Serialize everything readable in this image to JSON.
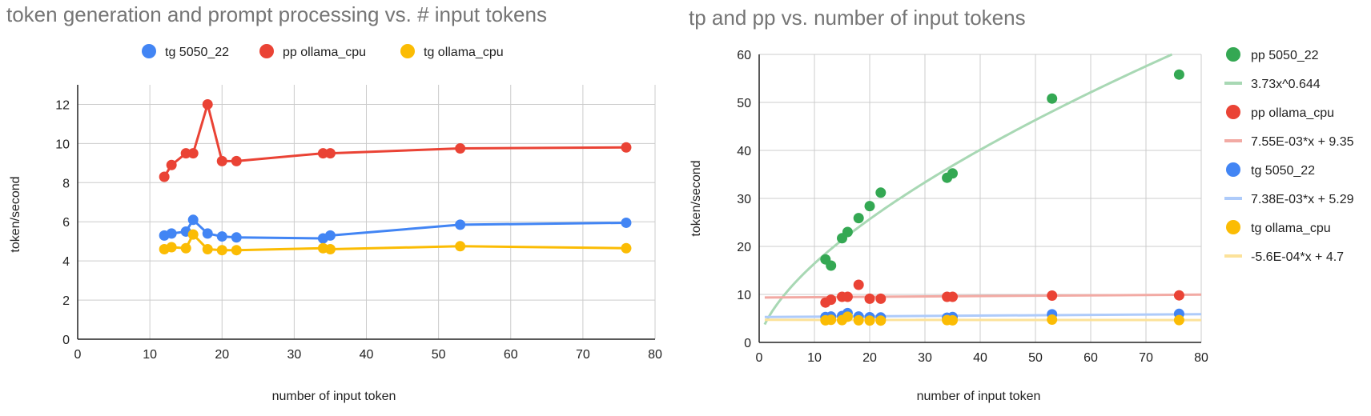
{
  "colors": {
    "blue": "#4285f4",
    "red": "#ea4335",
    "yellow": "#fbbc04",
    "green": "#34a853",
    "green_trend": "#a8d8b4",
    "red_trend": "#f2aaa4",
    "blue_trend": "#aecbfa",
    "yellow_trend": "#fce29a",
    "title": "#757575",
    "grid": "#cccccc",
    "axis": "#222222"
  },
  "chart_data": [
    {
      "type": "line",
      "title": "token generation and prompt processing vs. # input tokens",
      "xlabel": "number of input token",
      "ylabel": "token/second",
      "xlim": [
        0,
        80
      ],
      "ylim": [
        0,
        13
      ],
      "xticks": [
        0,
        10,
        20,
        30,
        40,
        50,
        60,
        70,
        80
      ],
      "yticks": [
        0,
        2,
        4,
        6,
        8,
        10,
        12
      ],
      "grid": true,
      "legend": "top",
      "x": [
        12,
        13,
        15,
        16,
        18,
        20,
        22,
        34,
        35,
        53,
        76
      ],
      "series": [
        {
          "name": "tg 5050_22",
          "color": "blue",
          "values": [
            5.3,
            5.4,
            5.5,
            6.1,
            5.4,
            5.25,
            5.2,
            5.15,
            5.3,
            5.85,
            5.95
          ]
        },
        {
          "name": "pp ollama_cpu",
          "color": "red",
          "values": [
            8.3,
            8.9,
            9.5,
            9.5,
            12.0,
            9.1,
            9.1,
            9.5,
            9.5,
            9.75,
            9.8
          ]
        },
        {
          "name": "tg ollama_cpu",
          "color": "yellow",
          "values": [
            4.6,
            4.7,
            4.65,
            5.35,
            4.6,
            4.55,
            4.55,
            4.65,
            4.6,
            4.75,
            4.65
          ]
        }
      ]
    },
    {
      "type": "scatter",
      "title": "tp and pp vs. number of input tokens",
      "xlabel": "number of input token",
      "ylabel": "token/second",
      "xlim": [
        0,
        80
      ],
      "ylim": [
        0,
        60
      ],
      "xticks": [
        0,
        10,
        20,
        30,
        40,
        50,
        60,
        70,
        80
      ],
      "yticks": [
        0,
        10,
        20,
        30,
        40,
        50,
        60
      ],
      "grid": true,
      "legend": "right",
      "x": [
        12,
        13,
        15,
        16,
        18,
        20,
        22,
        34,
        35,
        53,
        76
      ],
      "series": [
        {
          "name": "pp 5050_22",
          "color": "green",
          "values": [
            17.3,
            16.0,
            21.7,
            23.0,
            25.9,
            28.4,
            31.2,
            34.3,
            35.2,
            50.8,
            55.8
          ]
        },
        {
          "name": "pp ollama_cpu",
          "color": "red",
          "values": [
            8.3,
            8.9,
            9.5,
            9.5,
            12.0,
            9.1,
            9.1,
            9.5,
            9.5,
            9.75,
            9.8
          ]
        },
        {
          "name": "tg 5050_22",
          "color": "blue",
          "values": [
            5.3,
            5.4,
            5.5,
            6.1,
            5.4,
            5.25,
            5.2,
            5.15,
            5.3,
            5.85,
            5.95
          ]
        },
        {
          "name": "tg ollama_cpu",
          "color": "yellow",
          "values": [
            4.6,
            4.7,
            4.65,
            5.35,
            4.6,
            4.55,
            4.55,
            4.65,
            4.6,
            4.75,
            4.65
          ]
        }
      ],
      "trendlines": [
        {
          "label": "3.73x^0.644",
          "color": "green_trend",
          "kind": "power",
          "a": 3.73,
          "b": 0.644
        },
        {
          "label": "7.55E-03*x + 9.35",
          "color": "red_trend",
          "kind": "linear",
          "m": 0.00755,
          "c": 9.35
        },
        {
          "label": "7.38E-03*x + 5.29",
          "color": "blue_trend",
          "kind": "linear",
          "m": 0.00738,
          "c": 5.29
        },
        {
          "label": "-5.6E-04*x + 4.7",
          "color": "yellow_trend",
          "kind": "linear",
          "m": -0.00056,
          "c": 4.7
        }
      ]
    }
  ]
}
